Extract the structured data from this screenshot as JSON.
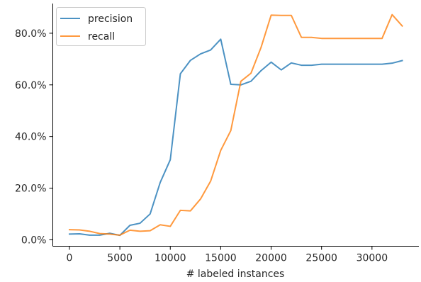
{
  "chart_data": {
    "type": "line",
    "title": "",
    "xlabel": "# labeled instances",
    "ylabel": "",
    "xlim": [
      -1650,
      34650
    ],
    "ylim": [
      -0.025,
      0.915
    ],
    "x_ticks": [
      0,
      5000,
      10000,
      15000,
      20000,
      25000,
      30000
    ],
    "x_tick_labels": [
      "0",
      "5000",
      "10000",
      "15000",
      "20000",
      "25000",
      "30000"
    ],
    "y_ticks": [
      0.0,
      0.2,
      0.4,
      0.6,
      0.8
    ],
    "y_tick_labels": [
      "0.0%",
      "20.0%",
      "40.0%",
      "60.0%",
      "80.0%"
    ],
    "grid": false,
    "legend_position": "top-left",
    "x": [
      0,
      1000,
      2000,
      3000,
      4000,
      5000,
      6000,
      7000,
      8000,
      9000,
      10000,
      11000,
      12000,
      13000,
      14000,
      15000,
      16000,
      17000,
      18000,
      19000,
      20000,
      21000,
      22000,
      23000,
      24000,
      25000,
      26000,
      27000,
      28000,
      29000,
      30000,
      31000,
      32000,
      33000
    ],
    "series": [
      {
        "name": "precision",
        "color": "#1f77b4",
        "values": [
          0.022,
          0.023,
          0.018,
          0.018,
          0.025,
          0.017,
          0.056,
          0.064,
          0.1,
          0.222,
          0.31,
          0.643,
          0.695,
          0.72,
          0.735,
          0.777,
          0.602,
          0.6,
          0.614,
          0.655,
          0.688,
          0.658,
          0.685,
          0.676,
          0.676,
          0.68,
          0.68,
          0.68,
          0.68,
          0.68,
          0.68,
          0.68,
          0.684,
          0.694
        ]
      },
      {
        "name": "recall",
        "color": "#ff7f0e",
        "values": [
          0.039,
          0.038,
          0.033,
          0.024,
          0.022,
          0.018,
          0.037,
          0.033,
          0.035,
          0.058,
          0.052,
          0.114,
          0.112,
          0.158,
          0.227,
          0.346,
          0.423,
          0.614,
          0.645,
          0.745,
          0.87,
          0.869,
          0.869,
          0.784,
          0.784,
          0.78,
          0.78,
          0.78,
          0.78,
          0.78,
          0.78,
          0.78,
          0.872,
          0.828
        ]
      }
    ]
  }
}
